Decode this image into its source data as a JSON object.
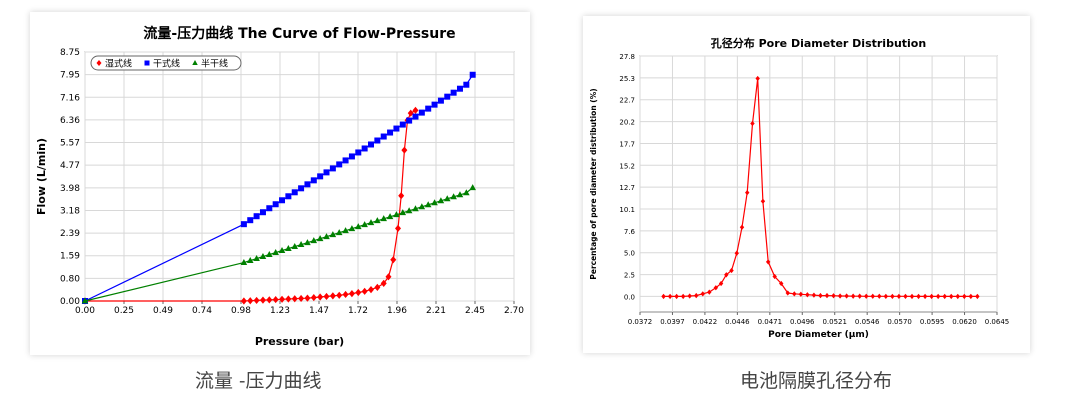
{
  "captions": {
    "left": "流量 -压力曲线",
    "right": "电池隔膜孔径分布"
  },
  "chart_data": [
    {
      "type": "line",
      "title": "流量-压力曲线 The Curve of Flow-Pressure",
      "xlabel": "Pressure (bar)",
      "ylabel": "Flow (L/min)",
      "xlim": [
        0,
        2.7
      ],
      "ylim": [
        0,
        8.75
      ],
      "xticks": [
        "0.00",
        "0.25",
        "0.49",
        "0.74",
        "0.98",
        "1.23",
        "1.47",
        "1.72",
        "1.96",
        "2.21",
        "2.45",
        "2.70"
      ],
      "yticks": [
        "0.00",
        "0.80",
        "1.59",
        "2.39",
        "3.18",
        "3.98",
        "4.77",
        "5.57",
        "6.36",
        "7.16",
        "7.95",
        "8.75"
      ],
      "grid": true,
      "legend_position": "top-left",
      "series": [
        {
          "name": "湿式线",
          "color": "#ff0000",
          "marker": "diamond",
          "x": [
            0,
            1.0,
            1.04,
            1.08,
            1.12,
            1.16,
            1.2,
            1.24,
            1.28,
            1.32,
            1.36,
            1.4,
            1.44,
            1.48,
            1.52,
            1.56,
            1.6,
            1.64,
            1.68,
            1.72,
            1.76,
            1.8,
            1.84,
            1.88,
            1.91,
            1.94,
            1.97,
            1.99,
            2.01,
            2.03,
            2.05,
            2.08
          ],
          "y": [
            0,
            0,
            0.01,
            0.02,
            0.03,
            0.04,
            0.05,
            0.06,
            0.07,
            0.08,
            0.09,
            0.1,
            0.12,
            0.14,
            0.16,
            0.18,
            0.2,
            0.23,
            0.26,
            0.3,
            0.34,
            0.4,
            0.48,
            0.62,
            0.85,
            1.45,
            2.55,
            3.7,
            5.3,
            6.35,
            6.6,
            6.7
          ]
        },
        {
          "name": "干式线",
          "color": "#0000ff",
          "marker": "square",
          "x": [
            0,
            1.0,
            1.04,
            1.08,
            1.12,
            1.16,
            1.2,
            1.24,
            1.28,
            1.32,
            1.36,
            1.4,
            1.44,
            1.48,
            1.52,
            1.56,
            1.6,
            1.64,
            1.68,
            1.72,
            1.76,
            1.8,
            1.84,
            1.88,
            1.92,
            1.96,
            2.0,
            2.04,
            2.08,
            2.12,
            2.16,
            2.2,
            2.24,
            2.28,
            2.32,
            2.36,
            2.4,
            2.44
          ],
          "y": [
            0,
            2.7,
            2.84,
            2.98,
            3.12,
            3.26,
            3.4,
            3.54,
            3.68,
            3.82,
            3.96,
            4.1,
            4.24,
            4.38,
            4.52,
            4.66,
            4.8,
            4.94,
            5.08,
            5.22,
            5.36,
            5.5,
            5.64,
            5.78,
            5.92,
            6.06,
            6.2,
            6.34,
            6.48,
            6.62,
            6.76,
            6.9,
            7.04,
            7.18,
            7.32,
            7.46,
            7.6,
            7.95
          ]
        },
        {
          "name": "半干线",
          "color": "#008000",
          "marker": "triangle",
          "x": [
            0,
            1.0,
            1.04,
            1.08,
            1.12,
            1.16,
            1.2,
            1.24,
            1.28,
            1.32,
            1.36,
            1.4,
            1.44,
            1.48,
            1.52,
            1.56,
            1.6,
            1.64,
            1.68,
            1.72,
            1.76,
            1.8,
            1.84,
            1.88,
            1.92,
            1.96,
            2.0,
            2.04,
            2.08,
            2.12,
            2.16,
            2.2,
            2.24,
            2.28,
            2.32,
            2.36,
            2.4,
            2.44
          ],
          "y": [
            0,
            1.35,
            1.42,
            1.49,
            1.56,
            1.63,
            1.7,
            1.77,
            1.84,
            1.91,
            1.98,
            2.05,
            2.12,
            2.19,
            2.26,
            2.33,
            2.4,
            2.47,
            2.54,
            2.61,
            2.68,
            2.75,
            2.82,
            2.89,
            2.96,
            3.03,
            3.1,
            3.17,
            3.24,
            3.31,
            3.38,
            3.45,
            3.52,
            3.59,
            3.66,
            3.73,
            3.8,
            3.98
          ]
        }
      ]
    },
    {
      "type": "line",
      "title": "孔径分布 Pore Diameter Distribution",
      "xlabel": "Pore Diameter (μm)",
      "ylabel": "Percentage of pore diameter distribution (%)",
      "xlim": [
        0.0372,
        0.0645
      ],
      "ylim": [
        -1.8,
        27.8
      ],
      "xticks": [
        "0.0372",
        "0.0397",
        "0.0422",
        "0.0446",
        "0.0471",
        "0.0496",
        "0.0521",
        "0.0546",
        "0.0570",
        "0.0595",
        "0.0620",
        "0.0645"
      ],
      "yticks": [
        "0.0",
        "2.5",
        "5.0",
        "7.6",
        "10.1",
        "12.7",
        "15.2",
        "17.7",
        "20.2",
        "22.7",
        "25.3",
        "27.8"
      ],
      "grid": true,
      "series": [
        {
          "color": "#ff0000",
          "marker": "diamond",
          "x": [
            0.039,
            0.0395,
            0.04,
            0.0405,
            0.041,
            0.0415,
            0.042,
            0.0425,
            0.043,
            0.0434,
            0.0438,
            0.0442,
            0.0446,
            0.045,
            0.0454,
            0.0458,
            0.0462,
            0.0466,
            0.047,
            0.0475,
            0.048,
            0.0485,
            0.049,
            0.0495,
            0.05,
            0.0505,
            0.051,
            0.0515,
            0.052,
            0.0525,
            0.053,
            0.0535,
            0.054,
            0.0545,
            0.055,
            0.0555,
            0.056,
            0.0565,
            0.057,
            0.0575,
            0.058,
            0.0585,
            0.059,
            0.0595,
            0.06,
            0.0605,
            0.061,
            0.0615,
            0.062,
            0.0625,
            0.063
          ],
          "y": [
            0.0,
            0.0,
            0.0,
            0.0,
            0.05,
            0.1,
            0.3,
            0.5,
            1.0,
            1.5,
            2.5,
            3.0,
            5.0,
            8.0,
            12.0,
            20.0,
            25.2,
            11.0,
            4.0,
            2.3,
            1.5,
            0.4,
            0.3,
            0.25,
            0.2,
            0.15,
            0.1,
            0.1,
            0.08,
            0.05,
            0.05,
            0.03,
            0.03,
            0.02,
            0.02,
            0.02,
            0.01,
            0.01,
            0.01,
            0.01,
            0.0,
            0.0,
            0.0,
            0.0,
            0.0,
            0.0,
            0.0,
            0.0,
            0.0,
            0.0,
            0.0
          ]
        }
      ]
    }
  ]
}
